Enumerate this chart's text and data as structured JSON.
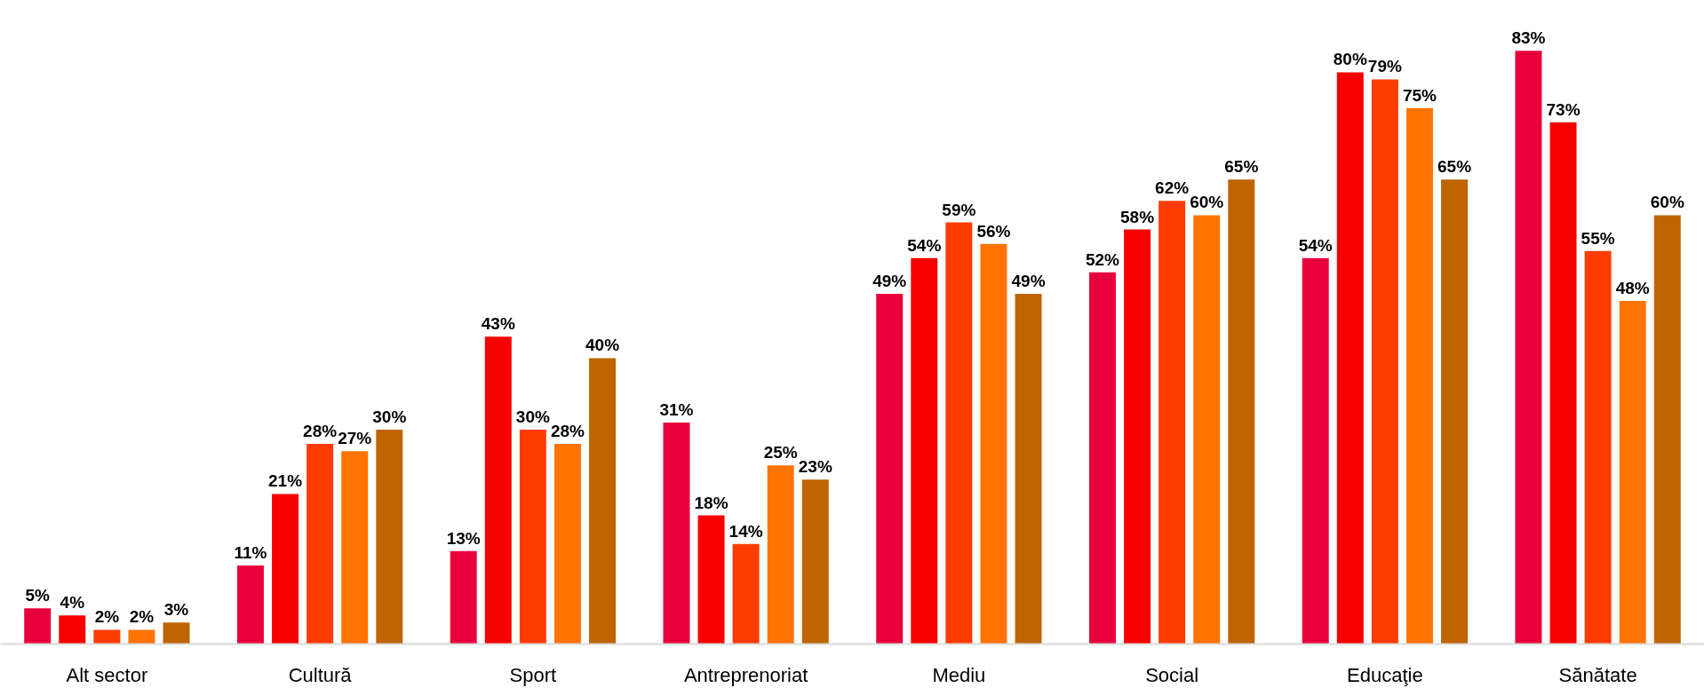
{
  "chart_data": {
    "type": "bar",
    "tick_labels": "x",
    "categories": [
      "Alt sector",
      "Cultură",
      "Sport",
      "Antreprenoriat",
      "Mediu",
      "Social",
      "Educaţie",
      "Sănătate"
    ],
    "series": [
      {
        "color": "#e8003c",
        "values": [
          5,
          11,
          13,
          31,
          49,
          52,
          54,
          83
        ],
        "value_labels": [
          "5%",
          "11%",
          "13%",
          "31%",
          "49%",
          "52%",
          "54%",
          "83%"
        ]
      },
      {
        "color": "#f80000",
        "values": [
          4,
          21,
          43,
          18,
          54,
          58,
          80,
          73
        ],
        "value_labels": [
          "4%",
          "21%",
          "43%",
          "18%",
          "54%",
          "58%",
          "80%",
          "73%"
        ]
      },
      {
        "color": "#ff3c00",
        "values": [
          2,
          28,
          30,
          14,
          59,
          62,
          79,
          55
        ],
        "value_labels": [
          "2%",
          "28%",
          "30%",
          "14%",
          "59%",
          "62%",
          "79%",
          "55%"
        ]
      },
      {
        "color": "#ff7400",
        "values": [
          2,
          27,
          28,
          25,
          56,
          60,
          75,
          48
        ],
        "value_labels": [
          "2%",
          "27%",
          "28%",
          "25%",
          "56%",
          "60%",
          "75%",
          "48%"
        ]
      },
      {
        "color": "#c06400",
        "values": [
          3,
          30,
          40,
          23,
          49,
          65,
          65,
          60
        ],
        "value_labels": [
          "3%",
          "30%",
          "40%",
          "23%",
          "49%",
          "65%",
          "65%",
          "60%"
        ]
      }
    ]
  }
}
